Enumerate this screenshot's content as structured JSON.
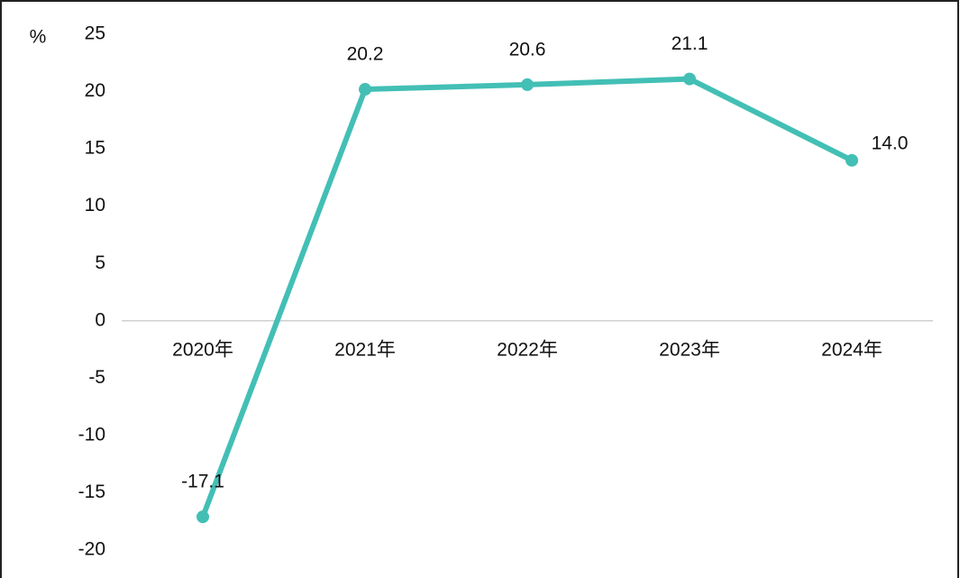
{
  "chart_data": {
    "type": "line",
    "y_axis_label": "%",
    "categories": [
      "2020年",
      "2021年",
      "2022年",
      "2023年",
      "2024年"
    ],
    "values": [
      -17.1,
      20.2,
      20.6,
      21.1,
      14.0
    ],
    "value_labels": [
      "-17.1",
      "20.2",
      "20.6",
      "21.1",
      "14.0"
    ],
    "color": "#43bfb5",
    "ylim": [
      -20,
      25
    ],
    "yticks": [
      25,
      20,
      15,
      10,
      5,
      0,
      -5,
      -10,
      -15,
      -20
    ],
    "grid": false
  }
}
